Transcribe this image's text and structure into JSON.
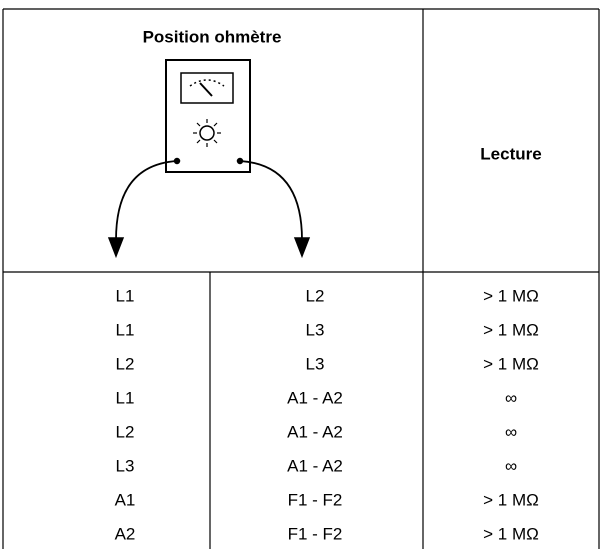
{
  "header": {
    "title": "Position ohmètre",
    "reading": "Lecture"
  },
  "table": {
    "rows": [
      [
        "L1",
        "L2",
        "> 1 MΩ"
      ],
      [
        "L1",
        "L3",
        "> 1 MΩ"
      ],
      [
        "L2",
        "L3",
        "> 1 MΩ"
      ],
      [
        "L1",
        "A1 - A2",
        "∞"
      ],
      [
        "L2",
        "A1 - A2",
        "∞"
      ],
      [
        "L3",
        "A1 - A2",
        "∞"
      ],
      [
        "A1",
        "F1 - F2",
        "> 1 MΩ"
      ],
      [
        "A2",
        "F1 - F2",
        "> 1 MΩ"
      ]
    ]
  }
}
